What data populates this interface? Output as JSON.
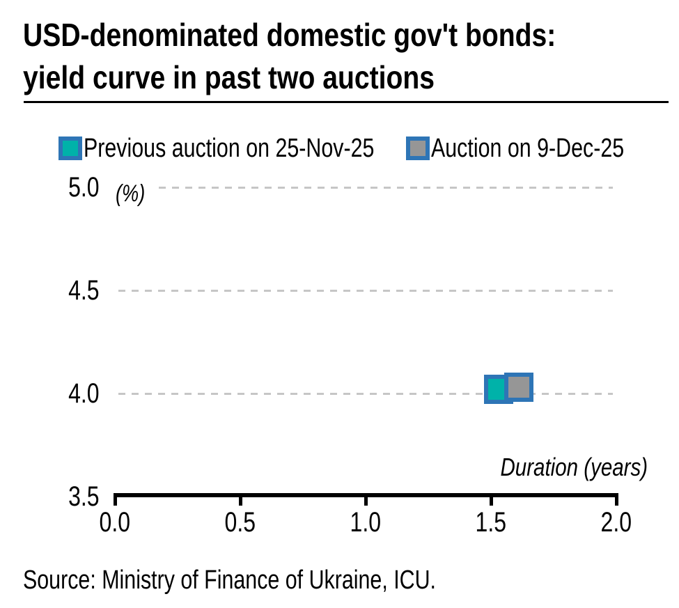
{
  "header": {
    "title_line1": "USD-denominated domestic gov't bonds:",
    "title_line2": "yield curve in past two auctions"
  },
  "legend": {
    "items": [
      {
        "label": "Previous auction on 25-Nov-25",
        "fill": "#00B2A9",
        "stroke": "#2E75B6"
      },
      {
        "label": "Auction on 9-Dec-25",
        "fill": "#969696",
        "stroke": "#2E75B6"
      }
    ]
  },
  "chart_data": {
    "type": "scatter",
    "title": "USD-denominated domestic gov't bonds: yield curve in past two auctions",
    "xlabel": "Duration (years)",
    "ylabel": "(%)",
    "xlim": [
      0.0,
      2.0
    ],
    "ylim": [
      3.5,
      5.0
    ],
    "x_ticks": [
      "0.0",
      "0.5",
      "1.0",
      "1.5",
      "2.0"
    ],
    "y_ticks": [
      "3.5",
      "4.0",
      "4.5",
      "5.0"
    ],
    "grid": "horizontal-dashed",
    "gridline_color": "#C6C6C6",
    "legend_position": "top",
    "series": [
      {
        "name": "Previous auction on 25-Nov-25",
        "marker": "square",
        "fill": "#00B2A9",
        "stroke": "#2E75B6",
        "points": [
          {
            "x": 1.53,
            "y": 4.02
          }
        ]
      },
      {
        "name": "Auction on 9-Dec-25",
        "marker": "square",
        "fill": "#969696",
        "stroke": "#2E75B6",
        "points": [
          {
            "x": 1.61,
            "y": 4.03
          }
        ]
      }
    ]
  },
  "footer": {
    "source": "Source: Ministry of Finance of Ukraine, ICU."
  }
}
